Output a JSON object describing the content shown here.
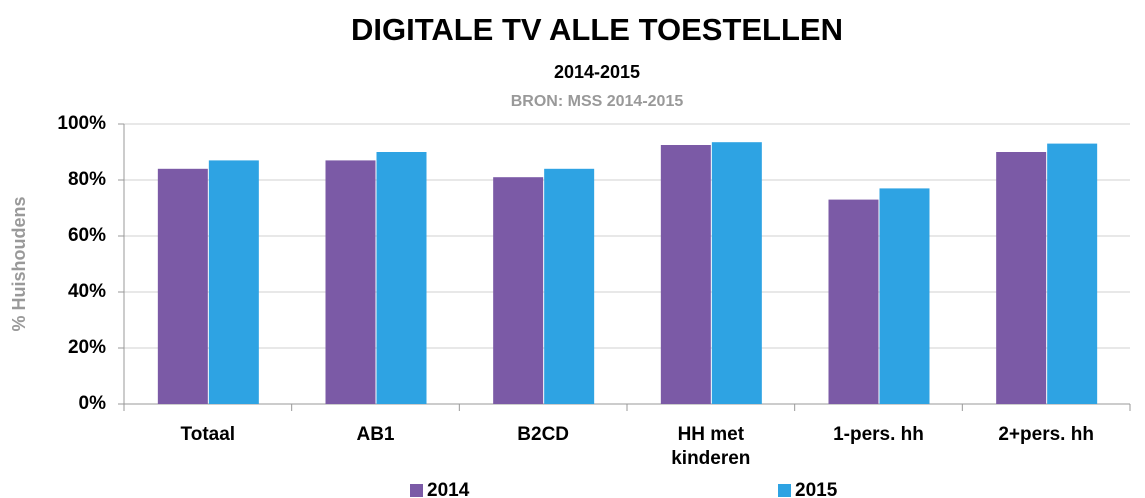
{
  "chart_data": {
    "type": "bar",
    "title": "DIGITALE TV ALLE TOESTELLEN",
    "subtitle": "2014-2015",
    "source": "BRON: MSS 2014-2015",
    "y_label": "% Huishoudens",
    "categories": [
      "Totaal",
      "AB1",
      "B2CD",
      "HH met kinderen",
      "1-pers. hh",
      "2+pers. hh"
    ],
    "series": [
      {
        "name": "2014",
        "color": "#7b5aa6",
        "values": [
          84,
          87,
          81,
          92.5,
          73,
          90
        ]
      },
      {
        "name": "2015",
        "color": "#2ea3e3",
        "values": [
          87,
          90,
          84,
          93.5,
          77,
          93
        ]
      }
    ],
    "ylim": [
      0,
      100
    ],
    "yticks": [
      {
        "value": 0,
        "label": "0%"
      },
      {
        "value": 20,
        "label": "20%"
      },
      {
        "value": 40,
        "label": "40%"
      },
      {
        "value": 60,
        "label": "60%"
      },
      {
        "value": 80,
        "label": "80%"
      },
      {
        "value": 100,
        "label": "100%"
      }
    ],
    "grid": true,
    "legend": "bottom"
  }
}
